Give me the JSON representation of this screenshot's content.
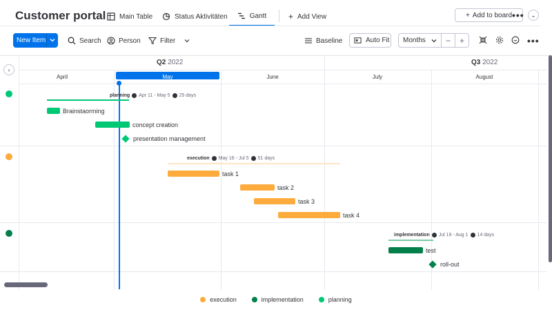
{
  "app": {
    "title": "Customer portal"
  },
  "tabs": [
    {
      "label": "Main Table"
    },
    {
      "label": "Status Aktivitäten"
    },
    {
      "label": "Gantt",
      "active": true
    },
    {
      "label": "Add View"
    }
  ],
  "header": {
    "add_board_label": "Add to board",
    "more_icon": "more-icon",
    "collapse_icon": "chevron-down-icon"
  },
  "toolbar": {
    "new_item_label": "New Item",
    "search_label": "Search",
    "person_label": "Person",
    "filter_label": "Filter",
    "baseline_label": "Baseline",
    "autofit_label": "Auto Fit",
    "months_value": "Months",
    "zoom_out": "−",
    "zoom_in": "+"
  },
  "timeline": {
    "quarters": [
      {
        "label": "Q2",
        "year": "2022"
      },
      {
        "label": "Q3",
        "year": "2022"
      }
    ],
    "months": [
      "April",
      "May",
      "June",
      "July",
      "August"
    ],
    "highlighted_month": "May"
  },
  "groups": [
    {
      "name": "planning",
      "color": "#00c875",
      "range": "Apr 11 - May 5",
      "duration": "25 days",
      "tasks": [
        {
          "name": "Brainstaorming",
          "type": "bar"
        },
        {
          "name": "concept creation",
          "type": "bar"
        },
        {
          "name": "presentation management",
          "type": "milestone"
        }
      ]
    },
    {
      "name": "execution",
      "color": "#fdab3d",
      "range": "May 16 - Jul 5",
      "duration": "51 days",
      "tasks": [
        {
          "name": "task 1",
          "type": "bar"
        },
        {
          "name": "task 2",
          "type": "bar"
        },
        {
          "name": "task 3",
          "type": "bar"
        },
        {
          "name": "task 4",
          "type": "bar"
        }
      ]
    },
    {
      "name": "implementation",
      "color": "#037f4c",
      "range": "Jul 19 - Aug 1",
      "duration": "14 days",
      "tasks": [
        {
          "name": "test",
          "type": "bar"
        },
        {
          "name": "roll-out",
          "type": "milestone"
        }
      ]
    }
  ],
  "legend": [
    {
      "label": "execution",
      "color": "#fdab3d"
    },
    {
      "label": "implementation",
      "color": "#037f4c"
    },
    {
      "label": "planning",
      "color": "#00c875"
    }
  ]
}
